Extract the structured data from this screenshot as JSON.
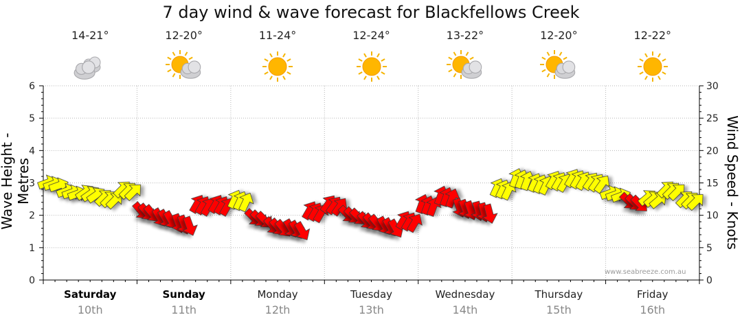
{
  "chart_data": {
    "type": "line",
    "title": "7 day wind & wave forecast for Blackfellows Creek",
    "ylabel": "Wave Height - Metres",
    "y2label": "Wind Speed - Knots",
    "ylim": [
      0,
      6
    ],
    "y2lim": [
      0,
      30
    ],
    "yticks": [
      "0",
      "1",
      "2",
      "3",
      "4",
      "5",
      "6"
    ],
    "y2ticks": [
      "0",
      "5",
      "10",
      "15",
      "20",
      "25",
      "30"
    ],
    "grid": true,
    "days": [
      {
        "name": "Saturday",
        "date": "10th",
        "temp": "14-21°",
        "icon": "cloudy-icon",
        "bold": true
      },
      {
        "name": "Sunday",
        "date": "11th",
        "temp": "12-20°",
        "icon": "sun-cloud-icon",
        "bold": true
      },
      {
        "name": "Monday",
        "date": "12th",
        "temp": "11-24°",
        "icon": "sun-icon",
        "bold": false
      },
      {
        "name": "Tuesday",
        "date": "13th",
        "temp": "12-24°",
        "icon": "sun-icon",
        "bold": false
      },
      {
        "name": "Wednesday",
        "date": "14th",
        "temp": "13-22°",
        "icon": "sun-cloud-icon",
        "bold": false
      },
      {
        "name": "Thursday",
        "date": "15th",
        "temp": "12-20°",
        "icon": "sun-cloud-icon",
        "bold": false
      },
      {
        "name": "Friday",
        "date": "16th",
        "temp": "12-22°",
        "icon": "sun-icon",
        "bold": false
      }
    ],
    "x_days": [
      0.0,
      0.2,
      0.4,
      0.6,
      0.8,
      1.0,
      1.2,
      1.4,
      1.6,
      1.8,
      2.0,
      2.2,
      2.4,
      2.6,
      2.8,
      3.0,
      3.2,
      3.4,
      3.6,
      3.8,
      4.0,
      4.2,
      4.4,
      4.6,
      4.8,
      5.0,
      5.2,
      5.4,
      5.6,
      5.8,
      6.0,
      6.2,
      6.4,
      6.6,
      6.8
    ],
    "series": [
      {
        "name": "Wind Speed",
        "axis": "right",
        "values": [
          14.8,
          13.5,
          13.3,
          12.5,
          13.8,
          10.5,
          9.5,
          8.6,
          11.5,
          11.5,
          12.2,
          9.5,
          8.2,
          7.8,
          10.5,
          11.5,
          10.0,
          9.0,
          8.2,
          9.0,
          11.5,
          12.8,
          11.0,
          10.5,
          14.0,
          15.5,
          14.8,
          15.2,
          15.5,
          15.0,
          13.2,
          12.0,
          12.5,
          13.8,
          12.3
        ],
        "direction_deg": [
          250,
          250,
          235,
          225,
          225,
          320,
          330,
          340,
          210,
          210,
          205,
          315,
          320,
          330,
          210,
          215,
          315,
          320,
          330,
          210,
          200,
          200,
          340,
          345,
          205,
          200,
          205,
          210,
          210,
          215,
          250,
          315,
          230,
          225,
          225
        ],
        "strength": [
          "yellow",
          "yellow",
          "yellow",
          "yellow",
          "yellow",
          "red",
          "red",
          "red",
          "red",
          "red",
          "yellow",
          "red",
          "red",
          "red",
          "red",
          "red",
          "red",
          "red",
          "red",
          "red",
          "red",
          "red",
          "red",
          "red",
          "yellow",
          "yellow",
          "yellow",
          "yellow",
          "yellow",
          "yellow",
          "yellow",
          "red",
          "yellow",
          "yellow",
          "yellow"
        ]
      }
    ]
  },
  "watermark": "www.seabreeze.com.au",
  "colors": {
    "light_wind": "#ffff00",
    "strong_wind": "#ff0000",
    "grid": "#b5b5b5",
    "axis": "#000000"
  }
}
